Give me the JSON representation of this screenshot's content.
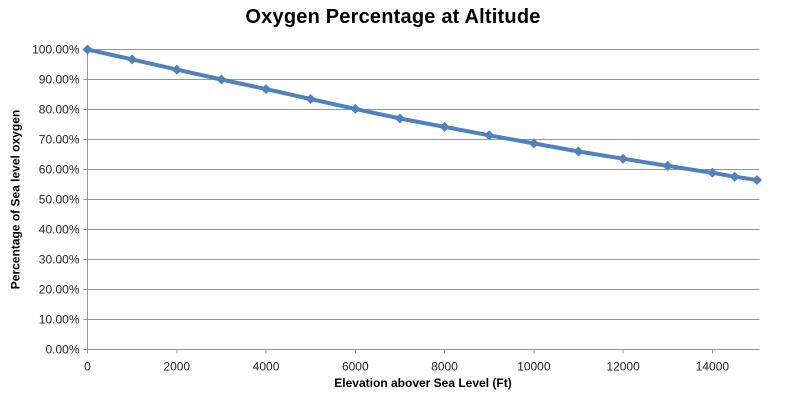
{
  "chart_data": {
    "type": "line",
    "title": "Oxygen Percentage at Altitude",
    "xlabel": "Elevation abover Sea Level (Ft)",
    "ylabel": "Percentage of Sea level oxygen",
    "legend": "none",
    "grid": "horizontal-major",
    "marker": "diamond",
    "xlim": [
      0,
      15000
    ],
    "ylim": [
      0,
      100
    ],
    "series": [
      {
        "name": "Percentage of sea level oxygen",
        "x": [
          0,
          1000,
          2000,
          3000,
          4000,
          5000,
          6000,
          7000,
          8000,
          9000,
          10000,
          11000,
          12000,
          13000,
          14000,
          14500,
          15000
        ],
        "y": [
          100.0,
          96.7,
          93.3,
          90.0,
          86.8,
          83.5,
          80.2,
          77.0,
          74.2,
          71.4,
          68.7,
          66.0,
          63.6,
          61.2,
          58.9,
          57.6,
          56.5
        ]
      }
    ],
    "x_tick_values": [
      0,
      2000,
      4000,
      6000,
      8000,
      10000,
      12000,
      14000
    ],
    "x_tick_labels": [
      "0",
      "2000",
      "4000",
      "6000",
      "8000",
      "10000",
      "12000",
      "14000"
    ],
    "y_tick_values": [
      0,
      10,
      20,
      30,
      40,
      50,
      60,
      70,
      80,
      90,
      100
    ],
    "y_tick_labels": [
      "0.00%",
      "10.00%",
      "20.00%",
      "30.00%",
      "40.00%",
      "50.00%",
      "60.00%",
      "70.00%",
      "80.00%",
      "90.00%",
      "100.00%"
    ],
    "colors": {
      "line": "#4F81BD",
      "gridline": "#969696",
      "axis": "#969696",
      "tick_text": "#262626",
      "title_text": "#000000",
      "background": "#FFFFFF"
    }
  }
}
